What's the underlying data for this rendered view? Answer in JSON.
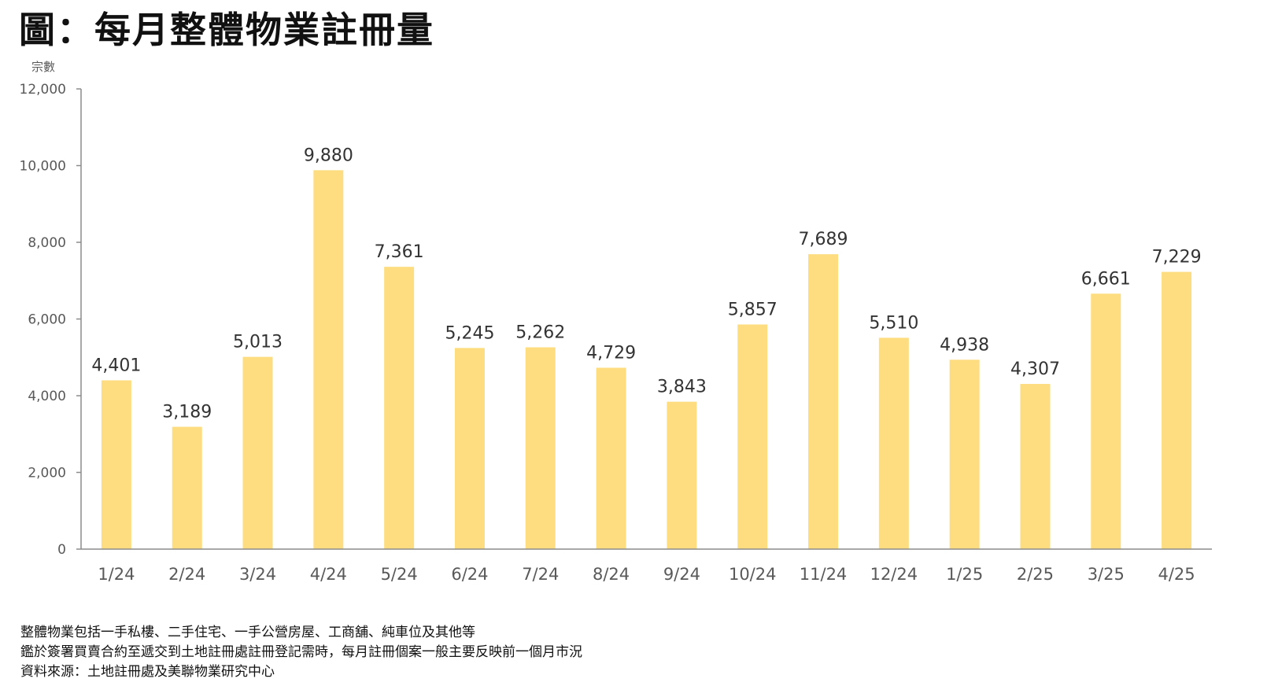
{
  "page": {
    "title": "圖：每月整體物業註冊量",
    "notes": [
      "整體物業包括一手私樓、二手住宅、一手公營房屋、工商舖、純車位及其他等",
      "鑑於簽署買賣合約至遞交到土地註冊處註冊登記需時，每月註冊個案一般主要反映前一個月市況",
      "資料來源：土地註冊處及美聯物業研究中心"
    ]
  },
  "chart_data": {
    "type": "bar",
    "title": "圖：每月整體物業註冊量",
    "ylabel": "宗數",
    "xlabel": "",
    "ylim": [
      0,
      12000
    ],
    "yticks": [
      0,
      2000,
      4000,
      6000,
      8000,
      10000,
      12000
    ],
    "ytick_labels": [
      "0",
      "2,000",
      "4,000",
      "6,000",
      "8,000",
      "10,000",
      "12,000"
    ],
    "categories": [
      "1/24",
      "2/24",
      "3/24",
      "4/24",
      "5/24",
      "6/24",
      "7/24",
      "8/24",
      "9/24",
      "10/24",
      "11/24",
      "12/24",
      "1/25",
      "2/25",
      "3/25",
      "4/25"
    ],
    "values": [
      4401,
      3189,
      5013,
      9880,
      7361,
      5245,
      5262,
      4729,
      3843,
      5857,
      7689,
      5510,
      4938,
      4307,
      6661,
      7229
    ],
    "value_labels": [
      "4,401",
      "3,189",
      "5,013",
      "9,880",
      "7,361",
      "5,245",
      "5,262",
      "4,729",
      "3,843",
      "5,857",
      "7,689",
      "5,510",
      "4,938",
      "4,307",
      "6,661",
      "7,229"
    ],
    "bar_color": "#FDDD80",
    "axis_color": "#8c8c8c",
    "grid": false,
    "legend": "none"
  }
}
